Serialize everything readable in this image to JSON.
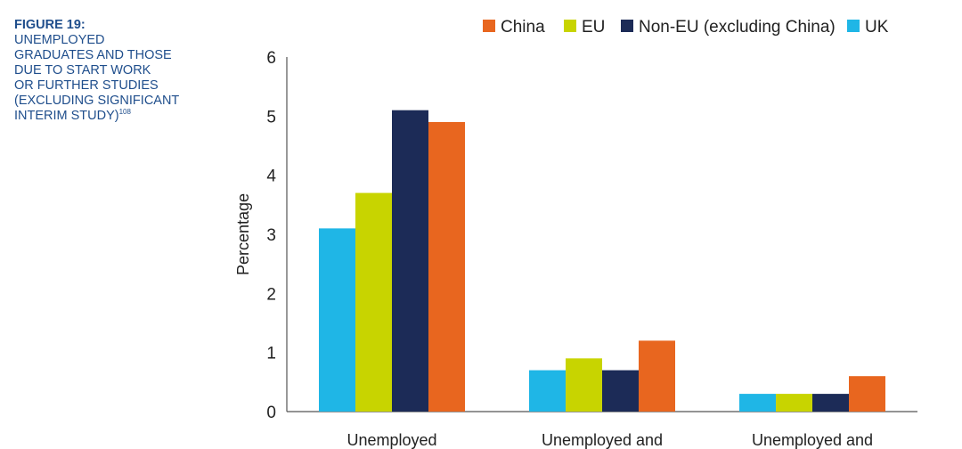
{
  "figure": {
    "label": "FIGURE 19:",
    "title_lines": [
      "UNEMPLOYED",
      "GRADUATES AND THOSE",
      "DUE TO START WORK",
      "OR FURTHER STUDIES",
      "(EXCLUDING SIGNIFICANT",
      "INTERIM STUDY)"
    ],
    "footnote_ref": "108"
  },
  "chart_data": {
    "type": "bar",
    "categories": [
      "Unemployed",
      "Unemployed and",
      "Unemployed and"
    ],
    "series": [
      {
        "name": "UK",
        "color": "#1fb6e6",
        "values": [
          3.1,
          0.7,
          0.3
        ]
      },
      {
        "name": "EU",
        "color": "#c8d400",
        "values": [
          3.7,
          0.9,
          0.3
        ]
      },
      {
        "name": "Non-EU (excluding China)",
        "color": "#1c2b57",
        "values": [
          5.1,
          0.7,
          0.3
        ]
      },
      {
        "name": "China",
        "color": "#e8661f",
        "values": [
          4.9,
          1.2,
          0.6
        ]
      }
    ],
    "legend_order": [
      "China",
      "EU",
      "Non-EU (excluding China)",
      "UK"
    ],
    "legend_placement": "top",
    "ylabel": "Percentage",
    "xlabel": "",
    "ylim": [
      0,
      6
    ],
    "yticks": [
      0,
      1,
      2,
      3,
      4,
      5,
      6
    ],
    "grid": false
  }
}
